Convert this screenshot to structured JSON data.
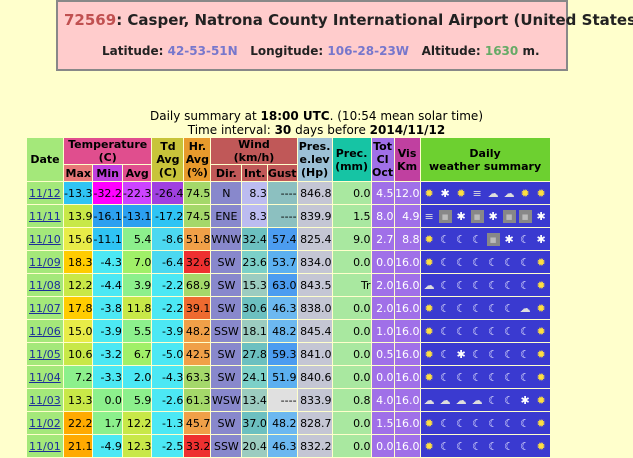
{
  "station": {
    "id": "72569",
    "sep": ":",
    "name": "Casper, Natrona County International Airport (United States)",
    "lat_label": "Latitude:",
    "lat": "42-53-51N",
    "lon_label": "Longitude:",
    "lon": "106-28-23W",
    "alt_label": "Altitude:",
    "alt": "1630",
    "alt_unit": "m."
  },
  "summary": {
    "line1_a": "Daily summary at ",
    "line1_b": "18:00 UTC",
    "line1_c": ". (10:54 mean solar time)",
    "line2_a": "Time interval: ",
    "line2_b": "30",
    "line2_c": " days before ",
    "line2_d": "2014/11/12"
  },
  "headers": {
    "date": "Date",
    "temp": "Temperature",
    "temp_unit": "(C)",
    "max": "Max",
    "min": "Min",
    "avg": "Avg",
    "td1": "Td",
    "td2": "Avg",
    "td3": "(C)",
    "hr1": "Hr.",
    "hr2": "Avg",
    "hr3": "(%)",
    "wind": "Wind",
    "wind_unit": "(km/h)",
    "dir": "Dir.",
    "int": "Int.",
    "gust": "Gust",
    "pres1": "Pres.",
    "pres2": "e.lev",
    "pres3": "(Hp)",
    "prec1": "Prec.",
    "prec2": "(mm)",
    "cl1": "Tot",
    "cl2": "Cl",
    "cl3": "Oct",
    "vis1": "Vis",
    "vis2": "Km",
    "daily1": "Daily",
    "daily2": "weather summary"
  },
  "rows": [
    {
      "date": "11/12",
      "max": "-13.3",
      "min": "-32.2",
      "avg": "-22.3",
      "td": "-26.4",
      "hr": "74.5",
      "dir": "N",
      "int": "8.3",
      "gust": "----",
      "pres": "846.8",
      "prec": "0.0",
      "cl": "4.5",
      "vis": "12.0",
      "icons": [
        "sun",
        "star",
        "sun",
        "fog",
        "cloud",
        "cloud",
        "sun",
        "sun"
      ],
      "colors": {
        "max": "#2fc4f4",
        "min": "#ff00ff",
        "avg": "#cc44ff",
        "td": "#a040e0",
        "hr": "#a4d86a",
        "int": "#bcbcf0",
        "gust": "#8cc0c0"
      }
    },
    {
      "date": "11/11",
      "max": "13.9",
      "min": "-16.1",
      "avg": "-13.1",
      "td": "-17.2",
      "hr": "74.5",
      "dir": "ENE",
      "int": "8.3",
      "gust": "----",
      "pres": "839.9",
      "prec": "1.5",
      "cl": "8.0",
      "vis": "4.9",
      "icons": [
        "fog",
        "blank",
        "star",
        "blank",
        "star",
        "blank",
        "blank",
        "star"
      ],
      "colors": {
        "max": "#c8e848",
        "min": "#2ca0f0",
        "avg": "#2ca0f0",
        "td": "#2fc4f4",
        "hr": "#a4d86a",
        "int": "#bcbcf0",
        "gust": "#8cc0c0"
      }
    },
    {
      "date": "11/10",
      "max": "15.6",
      "min": "-11.1",
      "avg": "5.4",
      "td": "-8.6",
      "hr": "51.8",
      "dir": "WNW",
      "int": "32.4",
      "gust": "57.4",
      "pres": "825.4",
      "prec": "9.0",
      "cl": "2.7",
      "vis": "8.8",
      "icons": [
        "sun",
        "moon",
        "moon",
        "moon",
        "blank",
        "star",
        "moon",
        "star"
      ],
      "colors": {
        "max": "#e8ec48",
        "min": "#2fc4f4",
        "avg": "#8cf08c",
        "td": "#4cd8f0",
        "hr": "#f0a048",
        "int": "#6cc0c0",
        "gust": "#4c9cf0"
      }
    },
    {
      "date": "11/09",
      "max": "18.3",
      "min": "-4.3",
      "avg": "7.0",
      "td": "-6.4",
      "hr": "32.6",
      "dir": "SW",
      "int": "23.6",
      "gust": "53.7",
      "pres": "834.0",
      "prec": "0.0",
      "cl": "0.0",
      "vis": "16.0",
      "icons": [
        "sun",
        "moon",
        "moon",
        "moon",
        "moon",
        "moon",
        "moon",
        "sun"
      ],
      "colors": {
        "max": "#ffcc00",
        "min": "#4ce8f4",
        "avg": "#a0f068",
        "td": "#4cd8f0",
        "hr": "#ee3030",
        "int": "#7cd0c8",
        "gust": "#5cb0f0"
      }
    },
    {
      "date": "11/08",
      "max": "12.2",
      "min": "-4.4",
      "avg": "3.9",
      "td": "-2.2",
      "hr": "68.9",
      "dir": "SW",
      "int": "15.3",
      "gust": "63.0",
      "pres": "843.5",
      "prec": "Tr",
      "cl": "2.0",
      "vis": "16.0",
      "icons": [
        "cloud",
        "moon",
        "moon",
        "moon",
        "moon",
        "moon",
        "moon",
        "sun"
      ],
      "colors": {
        "max": "#c8e848",
        "min": "#4ce8f4",
        "avg": "#8cf08c",
        "td": "#4ce8f4",
        "hr": "#a4d86a",
        "int": "#9cccc0",
        "gust": "#4c9cf0"
      }
    },
    {
      "date": "11/07",
      "max": "17.8",
      "min": "-3.8",
      "avg": "11.8",
      "td": "-2.2",
      "hr": "39.1",
      "dir": "SW",
      "int": "30.6",
      "gust": "46.3",
      "pres": "838.0",
      "prec": "0.0",
      "cl": "2.0",
      "vis": "16.0",
      "icons": [
        "sun",
        "moon",
        "moon",
        "moon",
        "moon",
        "moon",
        "cloud",
        "sun"
      ],
      "colors": {
        "max": "#ffcc00",
        "min": "#4ce8f4",
        "avg": "#c8e848",
        "td": "#4ce8f4",
        "hr": "#ee6a30",
        "int": "#6cc0c0",
        "gust": "#6cb8f0"
      }
    },
    {
      "date": "11/06",
      "max": "15.0",
      "min": "-3.9",
      "avg": "5.5",
      "td": "-3.9",
      "hr": "48.2",
      "dir": "SSW",
      "int": "18.1",
      "gust": "48.2",
      "pres": "845.4",
      "prec": "0.0",
      "cl": "1.0",
      "vis": "16.0",
      "icons": [
        "sun",
        "moon",
        "moon",
        "moon",
        "moon",
        "moon",
        "moon",
        "sun"
      ],
      "colors": {
        "max": "#e8ec48",
        "min": "#4ce8f4",
        "avg": "#8cf08c",
        "td": "#4ce8f4",
        "hr": "#f0a048",
        "int": "#9cccc0",
        "gust": "#6cb8f0"
      }
    },
    {
      "date": "11/05",
      "max": "10.6",
      "min": "-3.2",
      "avg": "6.7",
      "td": "-5.0",
      "hr": "42.5",
      "dir": "SW",
      "int": "27.8",
      "gust": "59.3",
      "pres": "841.0",
      "prec": "0.0",
      "cl": "0.5",
      "vis": "16.0",
      "icons": [
        "sun",
        "moon",
        "star",
        "moon",
        "moon",
        "moon",
        "moon",
        "sun"
      ],
      "colors": {
        "max": "#c8e848",
        "min": "#4ce8f4",
        "avg": "#a0f068",
        "td": "#4ce8f4",
        "hr": "#f0a048",
        "int": "#6cc0c0",
        "gust": "#4c9cf0"
      }
    },
    {
      "date": "11/04",
      "max": "7.2",
      "min": "-3.3",
      "avg": "2.0",
      "td": "-4.3",
      "hr": "63.3",
      "dir": "SW",
      "int": "24.1",
      "gust": "51.9",
      "pres": "840.6",
      "prec": "0.0",
      "cl": "0.0",
      "vis": "16.0",
      "icons": [
        "sun",
        "moon",
        "moon",
        "moon",
        "moon",
        "moon",
        "moon",
        "sun"
      ],
      "colors": {
        "max": "#8cf08c",
        "min": "#4ce8f4",
        "avg": "#4ce8f4",
        "td": "#4ce8f4",
        "hr": "#a4d86a",
        "int": "#7cd0c8",
        "gust": "#5cb0f0"
      }
    },
    {
      "date": "11/03",
      "max": "13.3",
      "min": "0.0",
      "avg": "5.9",
      "td": "-2.6",
      "hr": "61.3",
      "dir": "WSW",
      "int": "13.4",
      "gust": "----",
      "pres": "833.9",
      "prec": "0.8",
      "cl": "4.0",
      "vis": "16.0",
      "icons": [
        "cloud",
        "cloud",
        "cloud",
        "cloud",
        "moon",
        "moon",
        "star",
        "sun"
      ],
      "colors": {
        "max": "#c8e848",
        "min": "#8cf08c",
        "avg": "#8cf08c",
        "td": "#4ce8f4",
        "hr": "#a4d86a",
        "int": "#9cccc0",
        "gust": "#e0e0e0"
      }
    },
    {
      "date": "11/02",
      "max": "22.2",
      "min": "1.7",
      "avg": "12.2",
      "td": "-1.3",
      "hr": "45.7",
      "dir": "SW",
      "int": "37.0",
      "gust": "48.2",
      "pres": "828.7",
      "prec": "0.0",
      "cl": "1.5",
      "vis": "16.0",
      "icons": [
        "sun",
        "moon",
        "moon",
        "moon",
        "moon",
        "moon",
        "moon",
        "sun"
      ],
      "colors": {
        "max": "#ffaa00",
        "min": "#8cf08c",
        "avg": "#c8e848",
        "td": "#4ce8f4",
        "hr": "#f0a048",
        "int": "#6cc0c0",
        "gust": "#6cb8f0"
      }
    },
    {
      "date": "11/01",
      "max": "21.1",
      "min": "-4.9",
      "avg": "12.3",
      "td": "-2.5",
      "hr": "33.2",
      "dir": "SSW",
      "int": "20.4",
      "gust": "46.3",
      "pres": "832.2",
      "prec": "0.0",
      "cl": "0.0",
      "vis": "16.0",
      "icons": [
        "sun",
        "moon",
        "moon",
        "moon",
        "moon",
        "moon",
        "moon",
        "sun"
      ],
      "colors": {
        "max": "#ffaa00",
        "min": "#4ce8f4",
        "avg": "#c8e848",
        "td": "#4ce8f4",
        "hr": "#ee3030",
        "int": "#9cccc0",
        "gust": "#6cb8f0"
      }
    }
  ]
}
